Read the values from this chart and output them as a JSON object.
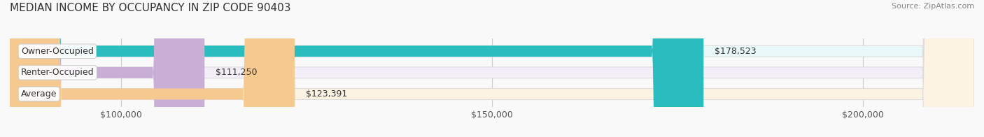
{
  "title": "MEDIAN INCOME BY OCCUPANCY IN ZIP CODE 90403",
  "source": "Source: ZipAtlas.com",
  "categories": [
    "Owner-Occupied",
    "Renter-Occupied",
    "Average"
  ],
  "values": [
    178523,
    111250,
    123391
  ],
  "value_labels": [
    "$178,523",
    "$111,250",
    "$123,391"
  ],
  "bar_colors": [
    "#2bbcbf",
    "#c9aed6",
    "#f5c990"
  ],
  "bar_bg_colors": [
    "#e8f8f8",
    "#f3eef7",
    "#fdf3e3"
  ],
  "xlim_min": 85000,
  "xlim_max": 215000,
  "xtick_values": [
    100000,
    150000,
    200000
  ],
  "xtick_labels": [
    "$100,000",
    "$150,000",
    "$200,000"
  ],
  "title_fontsize": 11,
  "source_fontsize": 8,
  "label_fontsize": 9,
  "tick_fontsize": 9,
  "background_color": "#f9f9f9",
  "bar_height": 0.52
}
